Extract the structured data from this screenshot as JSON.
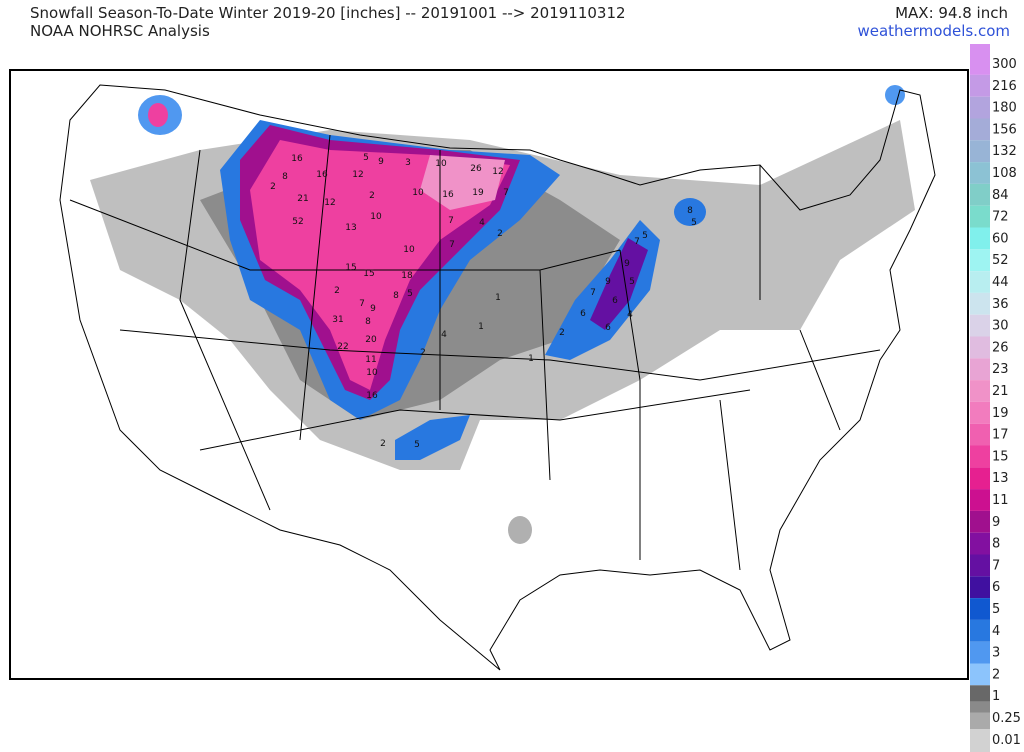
{
  "header": {
    "title": "Snowfall Season-To-Date Winter 2019-20 [inches] -- 20191001 --> 2019110312",
    "subtitle": "NOAA NOHRSC Analysis",
    "max": "MAX: 94.8 inch",
    "site": "weathermodels.com"
  },
  "legend": {
    "items": [
      {
        "label": "300",
        "color": "#d890f0"
      },
      {
        "label": "216",
        "color": "#c49ae6"
      },
      {
        "label": "180",
        "color": "#b2a4de"
      },
      {
        "label": "156",
        "color": "#a4acd8"
      },
      {
        "label": "132",
        "color": "#98b4d6"
      },
      {
        "label": "108",
        "color": "#8cc2d4"
      },
      {
        "label": "84",
        "color": "#80cec8"
      },
      {
        "label": "72",
        "color": "#7adccc"
      },
      {
        "label": "60",
        "color": "#80f0ec"
      },
      {
        "label": "52",
        "color": "#9ef4f2"
      },
      {
        "label": "44",
        "color": "#b8eef0"
      },
      {
        "label": "36",
        "color": "#cce4ee"
      },
      {
        "label": "30",
        "color": "#dad2e8"
      },
      {
        "label": "26",
        "color": "#e0bce0"
      },
      {
        "label": "23",
        "color": "#e8a4d4"
      },
      {
        "label": "21",
        "color": "#f092c8"
      },
      {
        "label": "19",
        "color": "#f27cbe"
      },
      {
        "label": "17",
        "color": "#f060b0"
      },
      {
        "label": "15",
        "color": "#ee40a0"
      },
      {
        "label": "13",
        "color": "#e62090"
      },
      {
        "label": "11",
        "color": "#cc1090"
      },
      {
        "label": "9",
        "color": "#a0108e"
      },
      {
        "label": "8",
        "color": "#8210a0"
      },
      {
        "label": "7",
        "color": "#6410a2"
      },
      {
        "label": "6",
        "color": "#4010a0"
      },
      {
        "label": "5",
        "color": "#1058d0"
      },
      {
        "label": "4",
        "color": "#2878e0"
      },
      {
        "label": "3",
        "color": "#5098f0"
      },
      {
        "label": "2",
        "color": "#8cc4fc"
      },
      {
        "label": "1",
        "color": "#686868"
      },
      {
        "label": null,
        "color": "#8a8a8a"
      },
      {
        "label": "0.25",
        "color": "#aaaaaa"
      },
      {
        "label": "0.01",
        "color": "#d2d2d2"
      }
    ]
  },
  "map": {
    "labels": [
      "16",
      "5",
      "9",
      "3",
      "10",
      "26",
      "12",
      "8",
      "16",
      "12",
      "2",
      "21",
      "2",
      "10",
      "16",
      "19",
      "7",
      "12",
      "10",
      "52",
      "13",
      "7",
      "4",
      "2",
      "10",
      "7",
      "15",
      "15",
      "18",
      "2",
      "8",
      "5",
      "7",
      "9",
      "8",
      "31",
      "20",
      "22",
      "11",
      "10",
      "16",
      "1",
      "1",
      "4",
      "2",
      "2",
      "1",
      "9",
      "7",
      "7",
      "9",
      "5",
      "6",
      "4",
      "6",
      "6",
      "8",
      "5",
      "2",
      "5",
      "5"
    ]
  }
}
